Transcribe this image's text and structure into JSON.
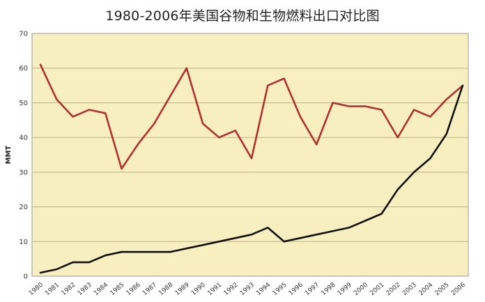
{
  "chart_data": {
    "type": "line",
    "title": "1980-2006年美国谷物和生物燃料出口对比图",
    "ylabel": "MMT",
    "xlabel": "",
    "ylim": [
      0,
      70
    ],
    "yticks": [
      0,
      10,
      20,
      30,
      40,
      50,
      60,
      70
    ],
    "x": [
      "1980",
      "1981",
      "1982",
      "1983",
      "1984",
      "1985",
      "1986",
      "1987",
      "1988",
      "1989",
      "1990",
      "1991",
      "1992",
      "1993",
      "1994",
      "1995",
      "1996",
      "1997",
      "1998",
      "1999",
      "2000",
      "2001",
      "2002",
      "2003",
      "2004",
      "2005",
      "2006"
    ],
    "grid": "horizontal",
    "legend": "none",
    "plot_background": "#f7efc0",
    "series": [
      {
        "color": "#b03030",
        "values": [
          61,
          51,
          46,
          48,
          47,
          31,
          38,
          44,
          52,
          60,
          44,
          40,
          42,
          34,
          55,
          57,
          46,
          38,
          50,
          49,
          49,
          48,
          40,
          48,
          46,
          51,
          55
        ]
      },
      {
        "color": "#111111",
        "values": [
          1,
          2,
          4,
          4,
          6,
          7,
          7,
          7,
          7,
          8,
          9,
          10,
          11,
          12,
          14,
          10,
          11,
          12,
          13,
          14,
          16,
          18,
          25,
          30,
          34,
          41,
          55
        ]
      }
    ]
  }
}
